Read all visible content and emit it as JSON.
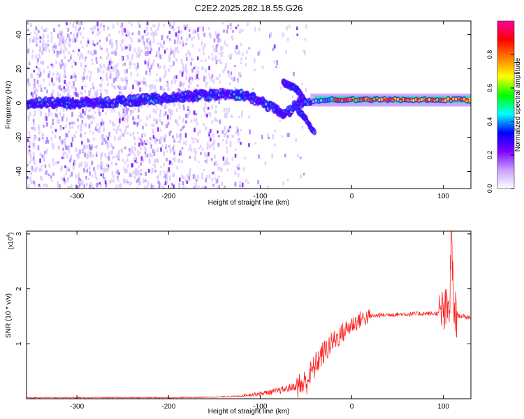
{
  "title": "C2E2.2025.282.18.55.G26",
  "chart_data": [
    {
      "type": "heatmap",
      "title": "C2E2.2025.282.18.55.G26",
      "xlabel": "Height of straight line (km)",
      "ylabel": "Frequency (Hz)",
      "xlim": [
        -355,
        130
      ],
      "ylim": [
        -50,
        48
      ],
      "xticks": [
        -300,
        -200,
        -100,
        0,
        100
      ],
      "yticks": [
        -40,
        -20,
        0,
        20,
        40
      ],
      "colorbar": {
        "label": "Normalized spectral amplitude",
        "range": [
          0,
          1
        ],
        "ticks": [
          0.0,
          0.2,
          0.4,
          0.6,
          0.8
        ],
        "colors": [
          "#ffffff",
          "#c8a0ff",
          "#8000ff",
          "#0000ff",
          "#00ffff",
          "#00ff00",
          "#ffff00",
          "#ff8000",
          "#ff0000",
          "#ff00a0"
        ]
      },
      "main_trace": [
        {
          "x": -355,
          "y": 0
        },
        {
          "x": -300,
          "y": 0
        },
        {
          "x": -250,
          "y": 1
        },
        {
          "x": -200,
          "y": 3
        },
        {
          "x": -150,
          "y": 5
        },
        {
          "x": -120,
          "y": 5
        },
        {
          "x": -100,
          "y": 1
        },
        {
          "x": -80,
          "y": -5
        },
        {
          "x": -70,
          "y": -6
        },
        {
          "x": -60,
          "y": 0
        },
        {
          "x": -40,
          "y": 1
        },
        {
          "x": -20,
          "y": 2
        },
        {
          "x": 0,
          "y": 2
        },
        {
          "x": 50,
          "y": 2
        },
        {
          "x": 100,
          "y": 2
        },
        {
          "x": 130,
          "y": 2
        }
      ],
      "branch_up": [
        {
          "x": -75,
          "y": 12
        },
        {
          "x": -60,
          "y": 8
        },
        {
          "x": -50,
          "y": 0
        }
      ],
      "branch_down": [
        {
          "x": -60,
          "y": -3
        },
        {
          "x": -50,
          "y": -10
        },
        {
          "x": -40,
          "y": -18
        }
      ]
    },
    {
      "type": "line",
      "xlabel": "Height of straight line (km)",
      "ylabel": "SNR (10 * v/v)",
      "y_multiplier": "(x10",
      "y_multiplier_exp": "4",
      "y_multiplier_close": ")",
      "xlim": [
        -355,
        130
      ],
      "ylim": [
        0,
        3.05
      ],
      "xticks": [
        -300,
        -200,
        -100,
        0,
        100
      ],
      "yticks": [
        1,
        2,
        3
      ],
      "color": "#ff2020",
      "series": [
        {
          "name": "SNR",
          "x": [
            -355,
            -300,
            -250,
            -200,
            -150,
            -120,
            -100,
            -80,
            -60,
            -50,
            -45,
            -40,
            -35,
            -30,
            -25,
            -20,
            -10,
            0,
            10,
            20,
            30,
            40,
            60,
            80,
            90,
            100,
            104,
            107,
            108,
            109,
            110,
            112,
            115,
            120,
            130
          ],
          "y": [
            0.02,
            0.02,
            0.02,
            0.02,
            0.03,
            0.05,
            0.08,
            0.12,
            0.2,
            0.3,
            0.45,
            0.6,
            0.75,
            0.85,
            0.95,
            1.05,
            1.2,
            1.35,
            1.45,
            1.5,
            1.52,
            1.53,
            1.54,
            1.55,
            1.55,
            1.56,
            1.58,
            1.7,
            2.6,
            3.0,
            2.2,
            1.55,
            1.52,
            1.5,
            1.48
          ]
        }
      ]
    }
  ]
}
